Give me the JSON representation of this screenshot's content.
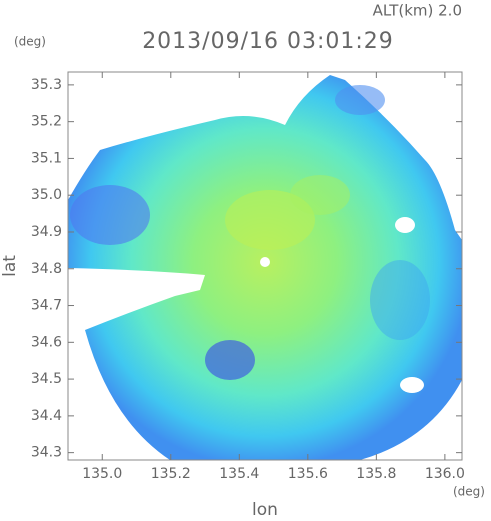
{
  "chart_data": {
    "type": "map",
    "title": "2013/09/16 03:01:29",
    "subtitle": "ALT(km) 2.0",
    "x_label": "lon",
    "y_label": "lat",
    "x_unit": "(deg)",
    "y_unit": "(deg)",
    "xlim": [
      134.9,
      136.05
    ],
    "ylim": [
      34.28,
      35.335
    ],
    "xticks": [
      {
        "value": 135,
        "label": "135.0"
      },
      135.2,
      135.4,
      135.6,
      135.8,
      {
        "value": 136,
        "label": "136.0"
      }
    ],
    "yticks": [
      34.3,
      34.4,
      34.5,
      34.6,
      34.7,
      34.8,
      34.9,
      {
        "value": 35,
        "label": "35.0"
      },
      35.1,
      35.2,
      35.3
    ]
  }
}
